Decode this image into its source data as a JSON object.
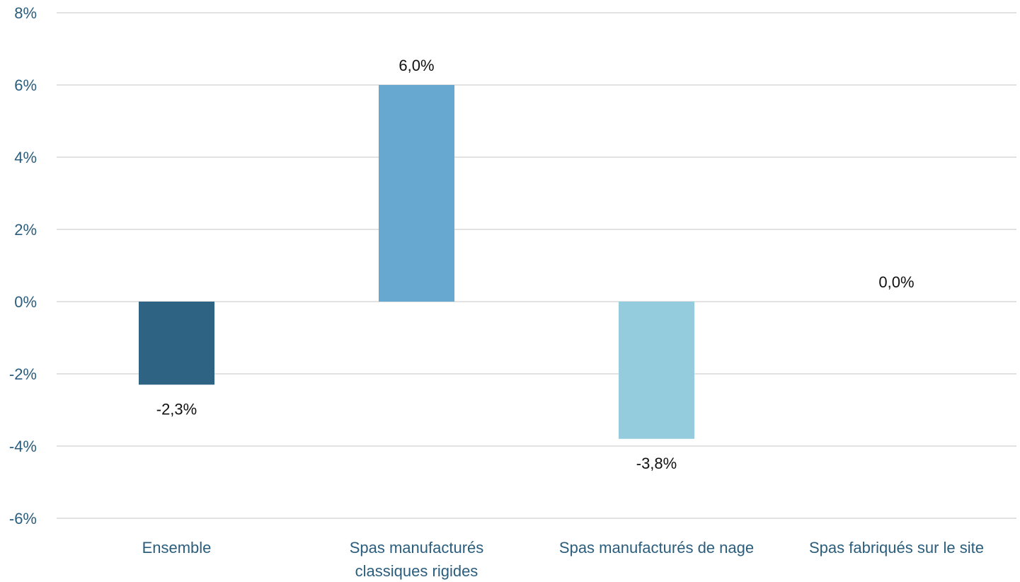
{
  "chart_data": {
    "type": "bar",
    "categories": [
      [
        "Ensemble"
      ],
      [
        "Spas manufacturés",
        "classiques rigides"
      ],
      [
        "Spas manufacturés de nage"
      ],
      [
        "Spas fabriqués sur le site"
      ]
    ],
    "values": [
      -2.3,
      6.0,
      -3.8,
      0.0
    ],
    "data_labels": [
      "-2,3%",
      "6,0%",
      "-3,8%",
      "0,0%"
    ],
    "bar_colors": [
      "#2e6384",
      "#66a8cf",
      "#94cbdd",
      "#c8e3ee"
    ],
    "ylim": [
      -6,
      8
    ],
    "yticks": [
      8,
      6,
      4,
      2,
      0,
      -2,
      -4,
      -6
    ],
    "ytick_labels": [
      "8%",
      "6%",
      "4%",
      "2%",
      "0%",
      "-2%",
      "-4%",
      "-6%"
    ],
    "grid": true,
    "legend": "none"
  }
}
